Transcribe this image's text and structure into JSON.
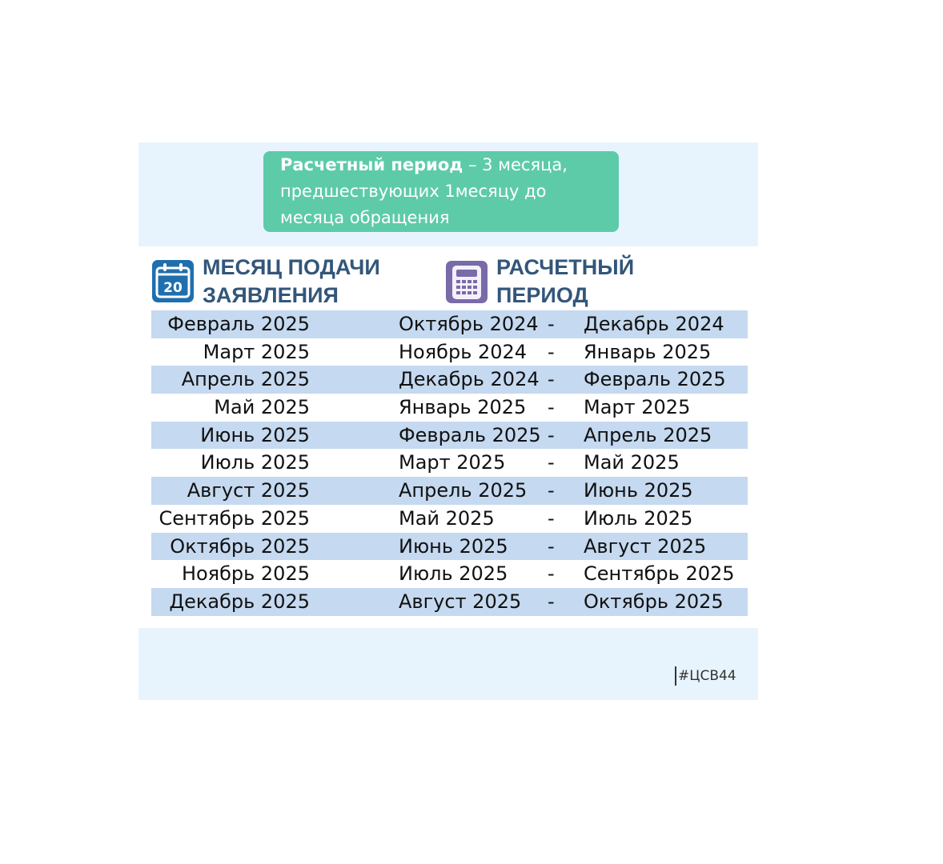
{
  "note": {
    "bold": "Расчетный период",
    "rest": " – 3 месяца, предшествующих 1месяцу до месяца обращения"
  },
  "headers": {
    "col1": "МЕСЯЦ ПОДАЧИ ЗАЯВЛЕНИЯ",
    "col2": "РАСЧЕТНЫЙ ПЕРИОД",
    "calendar_day": "20"
  },
  "rows": [
    {
      "month": "Февраль 2025",
      "from": "Октябрь 2024",
      "sep": "-",
      "to": "Декабрь 2024"
    },
    {
      "month": "Март 2025",
      "from": "Ноябрь 2024",
      "sep": "-",
      "to": "Январь 2025"
    },
    {
      "month": "Апрель 2025",
      "from": "Декабрь 2024",
      "sep": "-",
      "to": "Февраль 2025"
    },
    {
      "month": "Май 2025",
      "from": "Январь 2025",
      "sep": "-",
      "to": "Март 2025"
    },
    {
      "month": "Июнь 2025",
      "from": "Февраль 2025",
      "sep": "-",
      "to": "Апрель 2025"
    },
    {
      "month": "Июль 2025",
      "from": "Март 2025",
      "sep": "-",
      "to": "Май 2025"
    },
    {
      "month": "Август 2025",
      "from": "Апрель 2025",
      "sep": "-",
      "to": "Июнь 2025"
    },
    {
      "month": "Сентябрь 2025",
      "from": "Май 2025",
      "sep": "-",
      "to": "Июль 2025"
    },
    {
      "month": "Октябрь 2025",
      "from": "Июнь 2025",
      "sep": "-",
      "to": "Август 2025"
    },
    {
      "month": "Ноябрь 2025",
      "from": "Июль 2025",
      "sep": "-",
      "to": "Сентябрь 2025"
    },
    {
      "month": "Декабрь 2025",
      "from": "Август 2025",
      "sep": "-",
      "to": "Октябрь 2025"
    }
  ],
  "hashtag": "#ЦСВ44",
  "colors": {
    "note_bg": "#5ecba8",
    "row_alt": "#c5d9f0",
    "header_text": "#33567a",
    "panel_bg": "#e8f4fd"
  }
}
